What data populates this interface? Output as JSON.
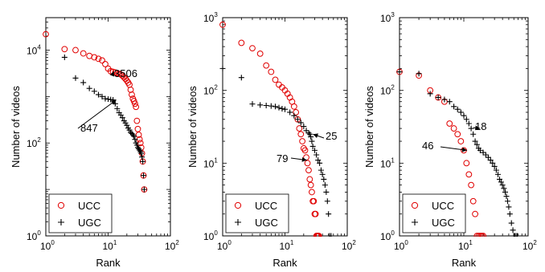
{
  "chart_data": [
    {
      "type": "scatter",
      "xlabel": "Rank",
      "ylabel": "Number of videos",
      "xscale": "log",
      "yscale": "log",
      "xlim": [
        1,
        100
      ],
      "ylim": [
        1,
        50000
      ],
      "x_ticks": [
        {
          "base": "10",
          "exp": "0",
          "value": 1
        },
        {
          "base": "10",
          "exp": "1",
          "value": 10
        },
        {
          "base": "10",
          "exp": "2",
          "value": 100
        }
      ],
      "y_ticks": [
        {
          "base": "10",
          "exp": "0",
          "value": 1
        },
        {
          "base": "10",
          "exp": "2",
          "value": 100
        },
        {
          "base": "10",
          "exp": "4",
          "value": 10000
        }
      ],
      "legend_position": "bottom-left",
      "series": [
        {
          "name": "UCC",
          "marker": "circle",
          "color": "#e00000",
          "x": [
            1,
            2,
            3,
            4,
            5,
            6,
            7,
            8,
            9,
            10,
            11,
            12,
            13,
            14,
            15,
            16,
            17,
            18,
            19,
            20,
            21,
            22,
            23,
            24,
            25,
            26,
            27,
            28,
            29,
            30,
            31,
            32,
            33,
            34,
            35,
            36,
            37,
            38
          ],
          "y": [
            22000,
            10500,
            10000,
            8500,
            7500,
            7000,
            6500,
            6000,
            5000,
            4000,
            3506,
            3400,
            3300,
            3200,
            3100,
            3000,
            2800,
            2600,
            2400,
            2200,
            2000,
            1800,
            1400,
            1100,
            900,
            800,
            700,
            600,
            300,
            200,
            150,
            120,
            100,
            80,
            60,
            40,
            20,
            10
          ]
        },
        {
          "name": "UGC",
          "marker": "plus",
          "color": "#000000",
          "x": [
            2,
            3,
            4,
            5,
            6,
            7,
            8,
            9,
            10,
            11,
            12,
            13,
            14,
            15,
            16,
            17,
            18,
            19,
            20,
            21,
            22,
            23,
            24,
            25,
            26,
            27,
            28,
            29,
            30,
            31,
            32,
            33,
            34,
            35,
            36,
            37,
            38
          ],
          "y": [
            7000,
            2500,
            2000,
            1500,
            1300,
            1100,
            1000,
            900,
            880,
            860,
            847,
            700,
            550,
            450,
            400,
            350,
            300,
            270,
            240,
            210,
            190,
            170,
            160,
            150,
            140,
            120,
            100,
            90,
            80,
            75,
            70,
            65,
            60,
            50,
            40,
            20,
            10
          ]
        }
      ],
      "annotations": [
        {
          "text": "3506",
          "x": 11,
          "y": 3506
        },
        {
          "text": "847",
          "x": 12,
          "y": 847
        }
      ]
    },
    {
      "type": "scatter",
      "xlabel": "Rank",
      "ylabel": "Number of videos",
      "xscale": "log",
      "yscale": "log",
      "xlim": [
        1,
        100
      ],
      "ylim": [
        1,
        1000
      ],
      "x_ticks": [
        {
          "base": "10",
          "exp": "0",
          "value": 1
        },
        {
          "base": "10",
          "exp": "1",
          "value": 10
        },
        {
          "base": "10",
          "exp": "2",
          "value": 100
        }
      ],
      "y_ticks": [
        {
          "base": "10",
          "exp": "0",
          "value": 1
        },
        {
          "base": "10",
          "exp": "1",
          "value": 10
        },
        {
          "base": "10",
          "exp": "2",
          "value": 100
        },
        {
          "base": "10",
          "exp": "3",
          "value": 1000
        }
      ],
      "legend_position": "bottom-left",
      "series": [
        {
          "name": "UCC",
          "marker": "circle",
          "color": "#e00000",
          "x": [
            1,
            2,
            3,
            4,
            5,
            6,
            7,
            8,
            9,
            10,
            11,
            12,
            13,
            14,
            15,
            16,
            17,
            18,
            19,
            20,
            21,
            22,
            23,
            24,
            25,
            26,
            27,
            28,
            29,
            30,
            31,
            32,
            33,
            34,
            35
          ],
          "y": [
            800,
            450,
            380,
            320,
            220,
            180,
            140,
            120,
            110,
            100,
            90,
            80,
            70,
            60,
            50,
            40,
            30,
            25,
            20,
            16,
            15,
            12,
            10,
            8,
            6,
            5,
            4,
            3,
            3,
            2,
            2,
            1,
            1,
            1,
            1
          ]
        },
        {
          "name": "UGC",
          "marker": "plus",
          "color": "#000000",
          "x": [
            1,
            2,
            3,
            4,
            5,
            6,
            7,
            8,
            9,
            10,
            12,
            14,
            16,
            18,
            20,
            22,
            24,
            25,
            26,
            27,
            28,
            30,
            32,
            34,
            36,
            38,
            40,
            42,
            44,
            46,
            48,
            50,
            52,
            55
          ],
          "y": [
            200,
            150,
            65,
            63,
            62,
            61,
            60,
            58,
            56,
            55,
            50,
            45,
            40,
            36,
            32,
            28,
            26,
            25,
            23,
            20,
            17,
            15,
            13,
            11,
            10,
            8,
            7,
            6,
            5,
            4,
            3,
            2,
            1,
            1
          ]
        }
      ],
      "annotations": [
        {
          "text": "25",
          "x": 25,
          "y": 25
        },
        {
          "text": "79",
          "x": 20,
          "y": 11
        }
      ]
    },
    {
      "type": "scatter",
      "xlabel": "Rank",
      "ylabel": "Number of videos",
      "xscale": "log",
      "yscale": "log",
      "xlim": [
        1,
        100
      ],
      "ylim": [
        1,
        1000
      ],
      "x_ticks": [
        {
          "base": "10",
          "exp": "0",
          "value": 1
        },
        {
          "base": "10",
          "exp": "1",
          "value": 10
        },
        {
          "base": "10",
          "exp": "2",
          "value": 100
        }
      ],
      "y_ticks": [
        {
          "base": "10",
          "exp": "0",
          "value": 1
        },
        {
          "base": "10",
          "exp": "1",
          "value": 10
        },
        {
          "base": "10",
          "exp": "2",
          "value": 100
        },
        {
          "base": "10",
          "exp": "3",
          "value": 1000
        }
      ],
      "legend_position": "bottom-left",
      "series": [
        {
          "name": "UCC",
          "marker": "circle",
          "color": "#e00000",
          "x": [
            1,
            2,
            3,
            4,
            5,
            6,
            7,
            8,
            9,
            10,
            11,
            12,
            13,
            14,
            15,
            16,
            17,
            18,
            19,
            20
          ],
          "y": [
            180,
            160,
            100,
            80,
            70,
            35,
            30,
            25,
            20,
            15,
            10,
            7,
            5,
            3,
            2,
            1,
            1,
            1,
            1,
            1
          ]
        },
        {
          "name": "UGC",
          "marker": "plus",
          "color": "#000000",
          "x": [
            1,
            2,
            3,
            4,
            5,
            6,
            7,
            8,
            9,
            10,
            11,
            12,
            13,
            14,
            15,
            16,
            17,
            18,
            20,
            22,
            24,
            26,
            28,
            30,
            32,
            34,
            36,
            38,
            40,
            42,
            44,
            46,
            48,
            50,
            52,
            55,
            58,
            60,
            62,
            65,
            68
          ],
          "y": [
            180,
            170,
            90,
            80,
            75,
            70,
            60,
            55,
            50,
            45,
            40,
            35,
            30,
            25,
            20,
            18,
            16,
            15,
            14,
            13,
            12,
            11,
            10,
            9,
            8,
            7,
            6,
            5.5,
            5,
            4.5,
            4,
            3.5,
            3,
            2.5,
            2,
            1.5,
            1.2,
            1,
            1,
            1,
            1
          ]
        }
      ],
      "annotations": [
        {
          "text": "18",
          "x": 16,
          "y": 30
        },
        {
          "text": "46",
          "x": 10,
          "y": 15
        }
      ]
    }
  ]
}
